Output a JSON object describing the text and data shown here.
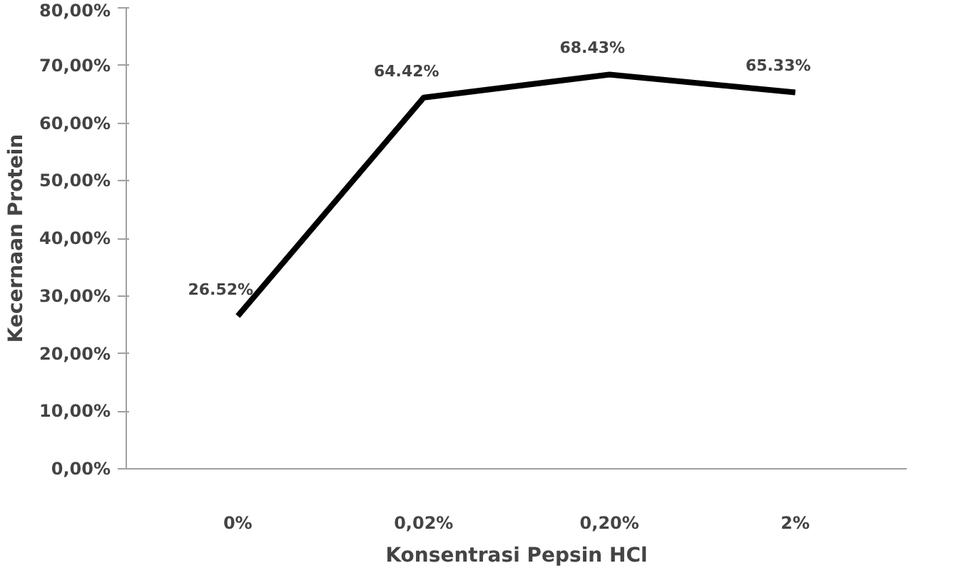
{
  "chart_data": {
    "type": "line",
    "xlabel": "Konsentrasi Pepsin HCl",
    "ylabel": "Kecernaan Protein",
    "categories": [
      "0%",
      "0,02%",
      "0,20%",
      "2%"
    ],
    "series": [
      {
        "color": "#000000",
        "values": [
          26.52,
          64.42,
          68.43,
          65.33
        ]
      }
    ],
    "value_labels": [
      "26.52%",
      "64.42%",
      "68.43%",
      "65.33%"
    ],
    "ylim": [
      0,
      80
    ],
    "yticks": [
      {
        "value": 0,
        "label": "0,00%"
      },
      {
        "value": 10,
        "label": "10,00%"
      },
      {
        "value": 20,
        "label": "20,00%"
      },
      {
        "value": 30,
        "label": "30,00%"
      },
      {
        "value": 40,
        "label": "40,00%"
      },
      {
        "value": 50,
        "label": "50,00%"
      },
      {
        "value": 60,
        "label": "60,00%"
      },
      {
        "value": 70,
        "label": "70,00%"
      },
      {
        "value": 80,
        "label": "80,00%"
      }
    ],
    "grid": false,
    "marker": "none",
    "line_style": "solid"
  }
}
